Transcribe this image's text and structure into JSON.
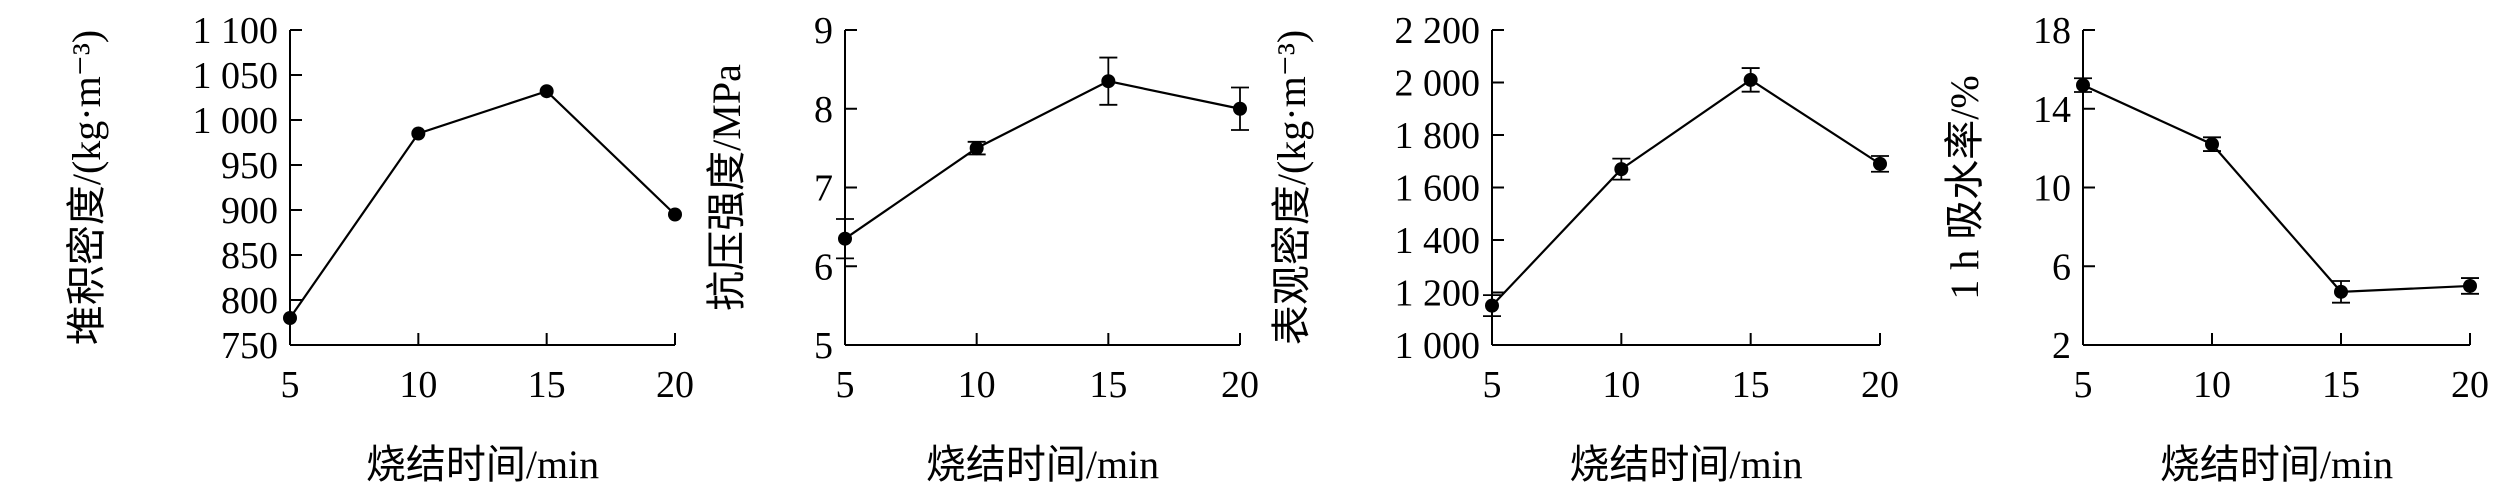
{
  "chart_data": [
    {
      "type": "line",
      "xlabel": "烧结时间/min",
      "ylabel": "堆积密度/(kg·m⁻³)",
      "x": [
        5,
        10,
        15,
        20
      ],
      "xticks": [
        "5",
        "10",
        "15",
        "20"
      ],
      "xlim": [
        5,
        20
      ],
      "ylim": [
        750,
        1100
      ],
      "yticks": [
        "750",
        "800",
        "850",
        "900",
        "950",
        "1 000",
        "1 050",
        "1 100"
      ],
      "ytick_values": [
        750,
        800,
        850,
        900,
        950,
        1000,
        1050,
        1100
      ],
      "series": [
        {
          "values": [
            780,
            985,
            1032,
            895
          ],
          "errors": [
            0,
            0,
            0,
            0
          ]
        }
      ],
      "grid": false
    },
    {
      "type": "line",
      "xlabel": "烧结时间/min",
      "ylabel": "抗压强度/MPa",
      "x": [
        5,
        10,
        15,
        20
      ],
      "xticks": [
        "5",
        "10",
        "15",
        "20"
      ],
      "xlim": [
        5,
        20
      ],
      "ylim": [
        5,
        9
      ],
      "yticks": [
        "5",
        "6",
        "7",
        "8",
        "9"
      ],
      "ytick_values": [
        5,
        6,
        7,
        8,
        9
      ],
      "series": [
        {
          "values": [
            6.35,
            7.5,
            8.35,
            8.0
          ],
          "errors": [
            0.25,
            0.08,
            0.3,
            0.27
          ]
        }
      ],
      "grid": false
    },
    {
      "type": "line",
      "xlabel": "烧结时间/min",
      "ylabel": "表观密度/(kg·m⁻³)",
      "x": [
        5,
        10,
        15,
        20
      ],
      "xticks": [
        "5",
        "10",
        "15",
        "20"
      ],
      "xlim": [
        5,
        20
      ],
      "ylim": [
        1000,
        2200
      ],
      "yticks": [
        "1 000",
        "1 200",
        "1 400",
        "1 600",
        "1 800",
        "2 000",
        "2 200"
      ],
      "ytick_values": [
        1000,
        1200,
        1400,
        1600,
        1800,
        2000,
        2200
      ],
      "series": [
        {
          "values": [
            1150,
            1670,
            2010,
            1690
          ],
          "errors": [
            40,
            40,
            45,
            30
          ]
        }
      ],
      "grid": false
    },
    {
      "type": "line",
      "xlabel": "烧结时间/min",
      "ylabel": "1 h 吸水率/%",
      "x": [
        5,
        10,
        15,
        20
      ],
      "xticks": [
        "5",
        "10",
        "15",
        "20"
      ],
      "xlim": [
        5,
        20
      ],
      "ylim": [
        2,
        18
      ],
      "yticks": [
        "2",
        "6",
        "10",
        "14",
        "18"
      ],
      "ytick_values": [
        2,
        6,
        10,
        14,
        18
      ],
      "series": [
        {
          "values": [
            15.2,
            12.2,
            4.7,
            5.0
          ],
          "errors": [
            0.35,
            0.35,
            0.55,
            0.4
          ]
        }
      ],
      "grid": false
    }
  ]
}
